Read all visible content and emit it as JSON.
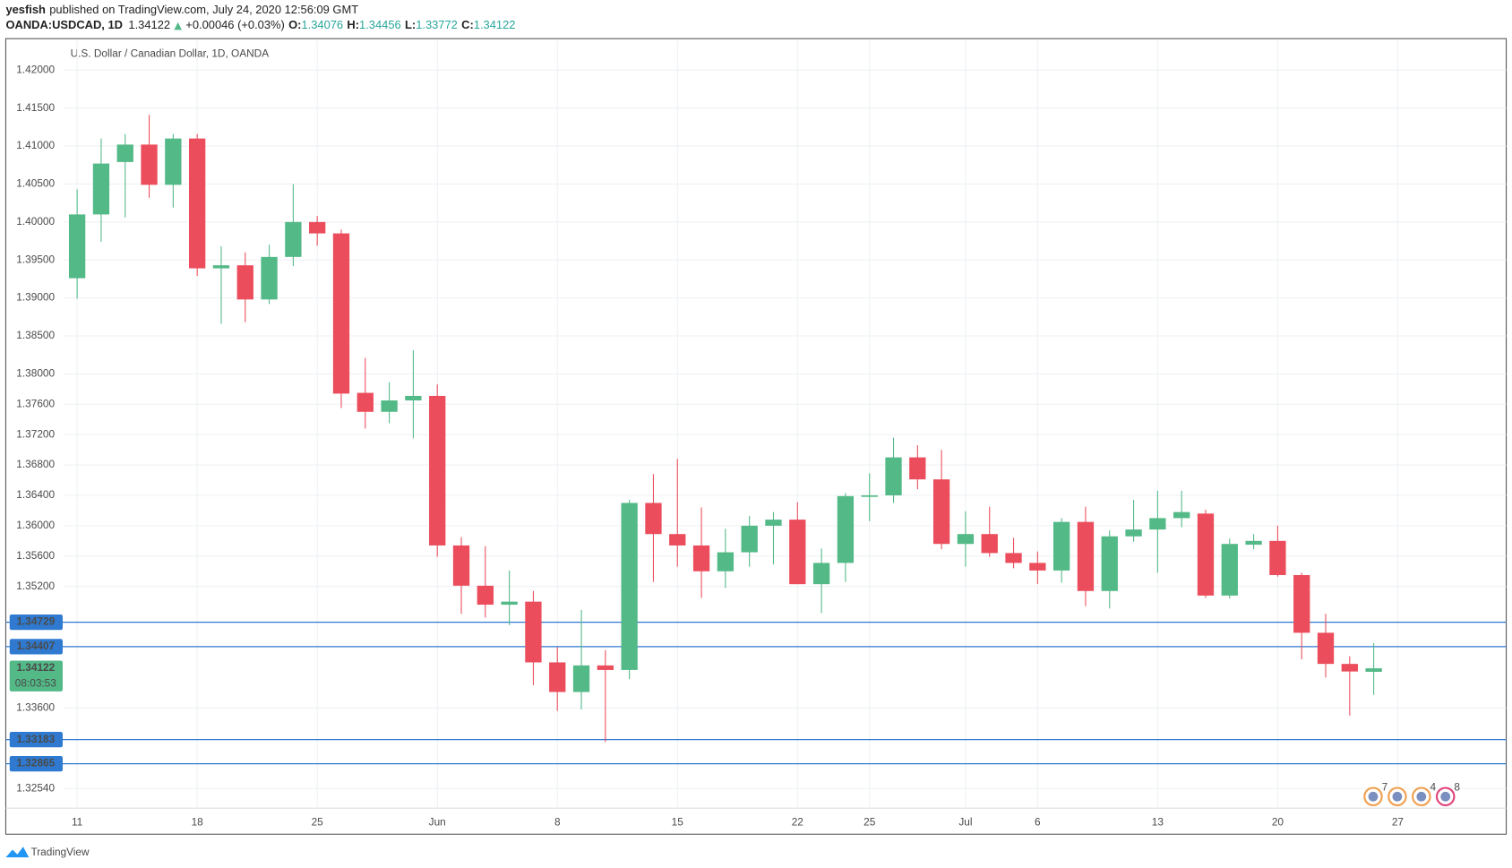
{
  "header": {
    "publisher": "yesfish",
    "published": "published on TradingView.com, July 24, 2020 12:56:09 GMT",
    "symbol": "OANDA:USDCAD, 1D",
    "change": "+0.00046 (+0.03%)",
    "ohlc_labels": [
      "O:",
      "H:",
      "L:",
      "C:"
    ]
  },
  "footer": {
    "brand": "TradingView"
  },
  "chart_data": {
    "type": "candlestick",
    "title": "U.S. Dollar / Canadian Dollar, 1D, OANDA",
    "categories": [
      "11",
      null,
      null,
      null,
      null,
      "18",
      null,
      null,
      null,
      null,
      "25",
      null,
      null,
      null,
      null,
      "Jun",
      null,
      null,
      null,
      null,
      "8",
      null,
      null,
      null,
      null,
      "15",
      null,
      null,
      null,
      null,
      "22",
      null,
      null,
      "25",
      null,
      null,
      null,
      "Jul",
      null,
      null,
      "6",
      null,
      null,
      null,
      null,
      "13",
      null,
      null,
      null,
      null,
      "20",
      null,
      null,
      null,
      null,
      "27"
    ],
    "open": [
      1.3926,
      1.401,
      1.4079,
      1.4102,
      1.4049,
      1.411,
      1.3939,
      1.3943,
      1.3898,
      1.3954,
      1.4,
      1.3985,
      1.3775,
      1.375,
      1.3765,
      1.3771,
      1.3574,
      1.3521,
      1.3496,
      1.35,
      1.342,
      1.3381,
      1.3416,
      1.341,
      1.363,
      1.3589,
      1.3574,
      1.354,
      1.3565,
      1.36,
      1.3608,
      1.3523,
      1.3551,
      1.3638,
      1.364,
      1.369,
      1.3661,
      1.3576,
      1.3589,
      1.3564,
      1.3551,
      1.3541,
      1.3605,
      1.3514,
      1.3586,
      1.3595,
      1.361,
      1.3616,
      1.3508,
      1.3575,
      1.358,
      1.3535,
      1.3459,
      1.3418,
      1.34076,
      null
    ],
    "high": [
      1.4043,
      1.411,
      1.4116,
      1.4141,
      1.4116,
      1.4116,
      1.3968,
      1.396,
      1.397,
      1.405,
      1.4008,
      1.399,
      1.3821,
      1.3789,
      1.3831,
      1.3786,
      1.3585,
      1.3573,
      1.3541,
      1.3514,
      1.344,
      1.3489,
      1.3436,
      1.3634,
      1.3668,
      1.3688,
      1.3624,
      1.3596,
      1.3613,
      1.3618,
      1.3631,
      1.357,
      1.3643,
      1.3669,
      1.3716,
      1.3706,
      1.37,
      1.3619,
      1.3625,
      1.3584,
      1.3566,
      1.361,
      1.3625,
      1.3594,
      1.3634,
      1.3646,
      1.3646,
      1.3621,
      1.3583,
      1.3589,
      1.36,
      1.3538,
      1.3484,
      1.3428,
      1.34456,
      null
    ],
    "low": [
      1.3899,
      1.3974,
      1.4006,
      1.4032,
      1.4019,
      1.3929,
      1.3866,
      1.3868,
      1.3892,
      1.3942,
      1.3969,
      1.3755,
      1.3728,
      1.3735,
      1.3715,
      1.3559,
      1.3484,
      1.3479,
      1.3469,
      1.339,
      1.3356,
      1.3358,
      1.3315,
      1.3398,
      1.3526,
      1.3546,
      1.3505,
      1.3518,
      1.3546,
      1.3549,
      1.3523,
      1.3485,
      1.3526,
      1.3606,
      1.363,
      1.3648,
      1.3569,
      1.3546,
      1.3559,
      1.3544,
      1.3523,
      1.3525,
      1.3494,
      1.3491,
      1.3579,
      1.3538,
      1.3598,
      1.3505,
      1.3504,
      1.3569,
      1.3533,
      1.3424,
      1.34,
      1.335,
      1.33772,
      null
    ],
    "close": [
      1.401,
      1.4077,
      1.4102,
      1.4049,
      1.411,
      1.3939,
      1.3943,
      1.3898,
      1.3954,
      1.4,
      1.3985,
      1.3774,
      1.375,
      1.3765,
      1.3771,
      1.3574,
      1.3521,
      1.3496,
      1.35,
      1.342,
      1.3381,
      1.3416,
      1.341,
      1.363,
      1.3589,
      1.3574,
      1.354,
      1.3565,
      1.36,
      1.3608,
      1.3523,
      1.3551,
      1.3639,
      1.364,
      1.369,
      1.3661,
      1.3576,
      1.3589,
      1.3564,
      1.3551,
      1.3541,
      1.3605,
      1.3514,
      1.3586,
      1.3595,
      1.361,
      1.3618,
      1.3508,
      1.3576,
      1.358,
      1.3535,
      1.3459,
      1.3418,
      1.3408,
      1.34122,
      null
    ],
    "up_color": "#53b987",
    "down_color": "#eb4d5c",
    "ylim": [
      1.3228,
      1.4239
    ],
    "yticks": [
      {
        "value": 1.42,
        "label": "1.42000"
      },
      {
        "value": 1.415,
        "label": "1.41500"
      },
      {
        "value": 1.41,
        "label": "1.41000"
      },
      {
        "value": 1.405,
        "label": "1.40500"
      },
      {
        "value": 1.4,
        "label": "1.40000"
      },
      {
        "value": 1.395,
        "label": "1.39500"
      },
      {
        "value": 1.39,
        "label": "1.39000"
      },
      {
        "value": 1.385,
        "label": "1.38500"
      },
      {
        "value": 1.38,
        "label": "1.38000"
      },
      {
        "value": 1.376,
        "label": "1.37600"
      },
      {
        "value": 1.372,
        "label": "1.37200"
      },
      {
        "value": 1.368,
        "label": "1.36800"
      },
      {
        "value": 1.364,
        "label": "1.36400"
      },
      {
        "value": 1.36,
        "label": "1.36000"
      },
      {
        "value": 1.356,
        "label": "1.35600"
      },
      {
        "value": 1.352,
        "label": "1.35200"
      },
      {
        "value": 1.336,
        "label": "1.33600"
      },
      {
        "value": 1.3254,
        "label": "1.32540"
      }
    ],
    "grid": true,
    "levels": [
      1.34729,
      1.34407,
      1.33183,
      1.32865
    ],
    "level_color": "#2f7ad0",
    "countdown": "08:03:53",
    "event_labels": [
      "7",
      "4",
      "8"
    ]
  }
}
